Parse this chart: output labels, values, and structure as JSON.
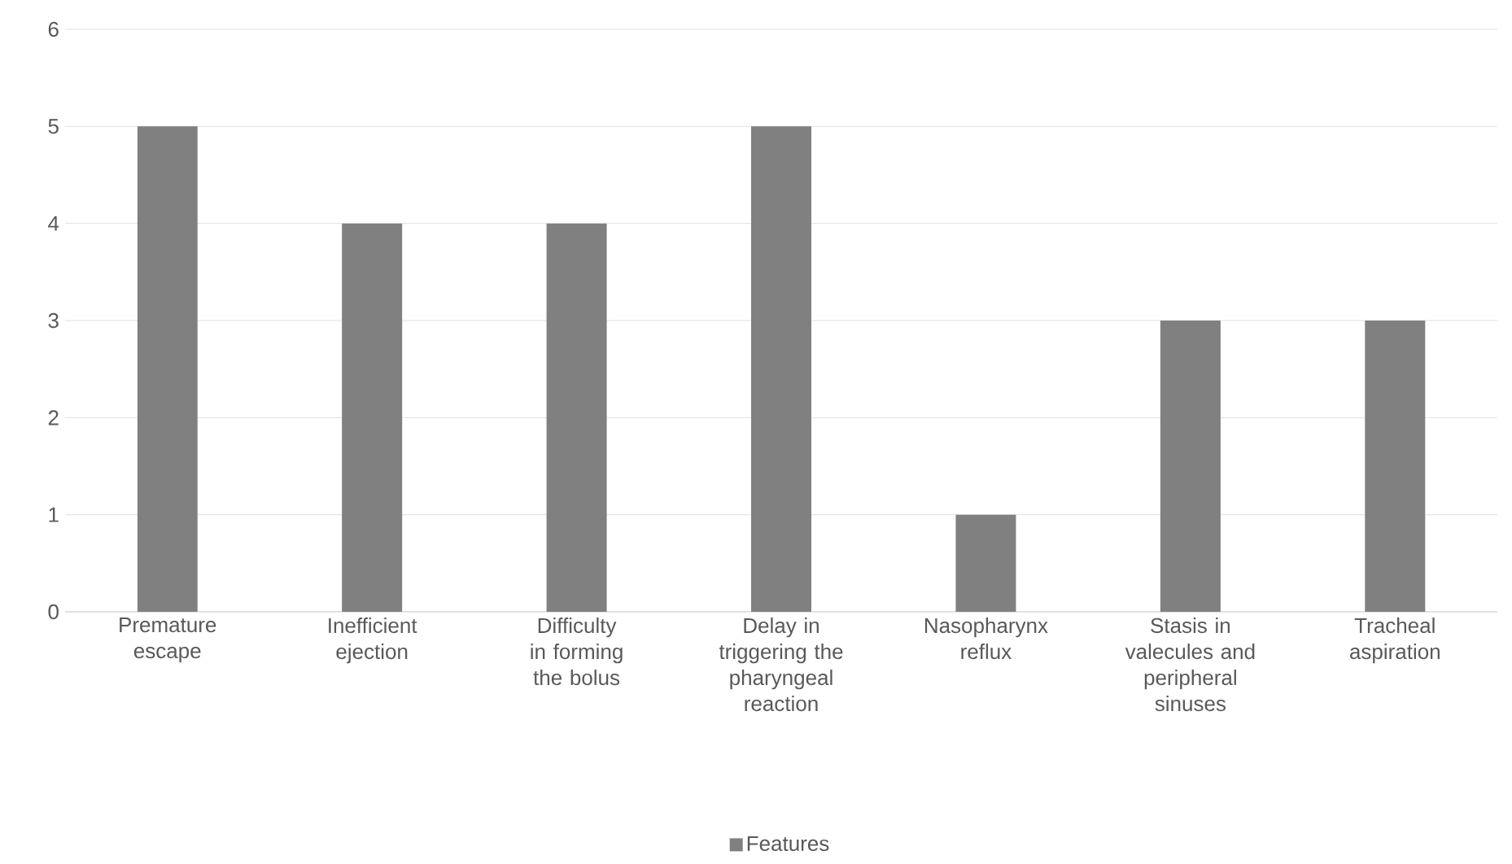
{
  "chart_data": {
    "type": "bar",
    "categories": [
      "Premature escape",
      "Inefficient ejection",
      "Difficulty in forming the bolus",
      "Delay in triggering the pharyngeal reaction",
      "Nasopharynx reflux",
      "Stasis in valecules and peripheral sinuses",
      "Tracheal aspiration"
    ],
    "series": [
      {
        "name": "Features",
        "color": "#808080",
        "values": [
          5,
          4,
          4,
          5,
          1,
          3,
          3
        ]
      }
    ],
    "ylim": [
      0,
      6
    ],
    "yticks": [
      0,
      1,
      2,
      3,
      4,
      5,
      6
    ],
    "grid": "y",
    "legend": "bottom"
  }
}
